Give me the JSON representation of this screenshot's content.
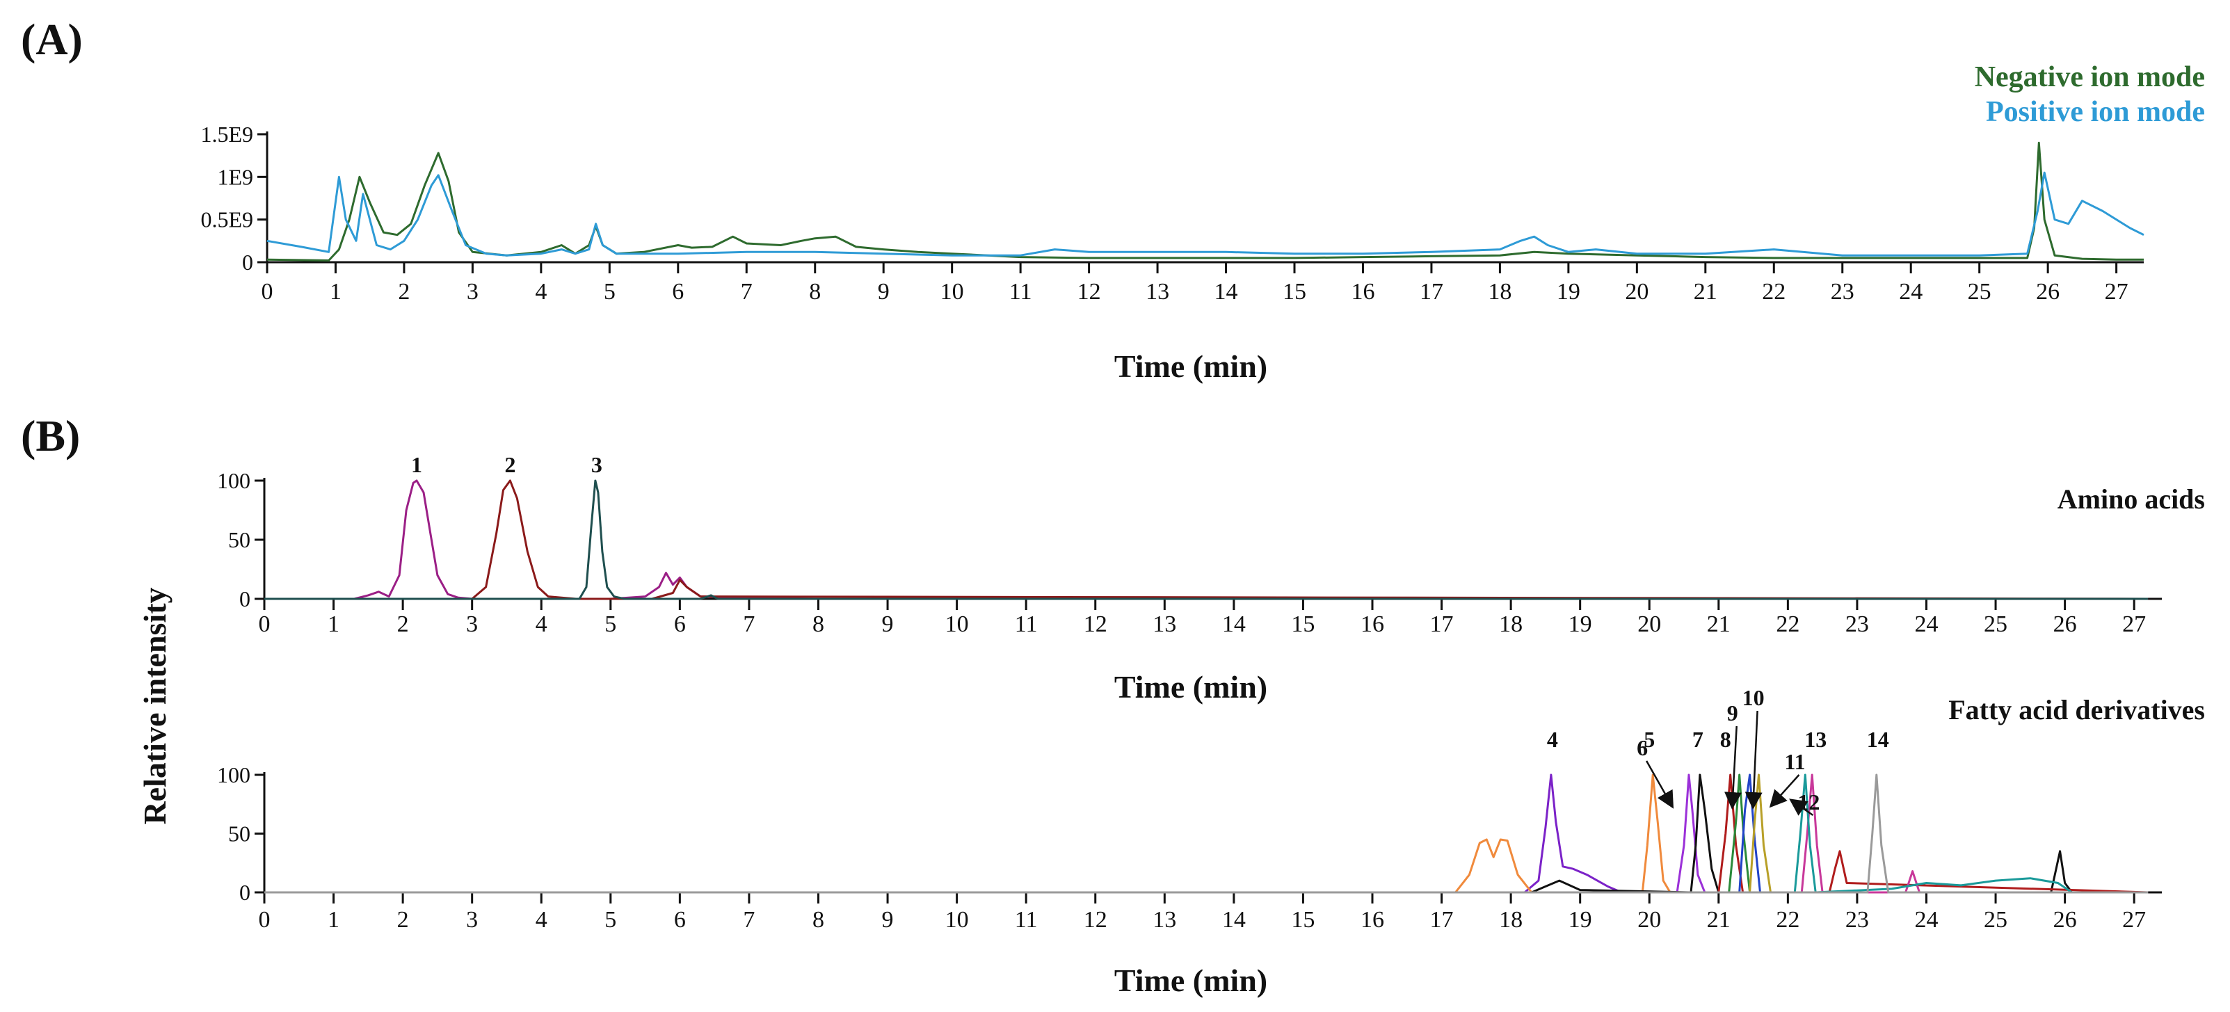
{
  "chart_data": [
    {
      "panel": "(A)",
      "type": "line",
      "xlabel": "Time (min)",
      "ylabel": "",
      "xlim": [
        0,
        27.4
      ],
      "ylim": [
        0,
        1.5
      ],
      "x_ticks": [
        "0",
        "1",
        "2",
        "3",
        "4",
        "5",
        "6",
        "7",
        "8",
        "9",
        "10",
        "11",
        "12",
        "13",
        "14",
        "15",
        "16",
        "17",
        "18",
        "19",
        "20",
        "21",
        "22",
        "23",
        "24",
        "25",
        "26",
        "27"
      ],
      "y_ticks": [
        {
          "value": 0,
          "label": "0"
        },
        {
          "value": 0.5,
          "label": "0.5E9"
        },
        {
          "value": 1,
          "label": "1E9"
        },
        {
          "value": 1.5,
          "label": "1.5E9"
        }
      ],
      "legend": [
        "Negative ion mode",
        "Positive ion mode"
      ],
      "legend_position": "top-right",
      "series": [
        {
          "name": "Negative ion mode",
          "color": "#2e6b2e",
          "x": [
            0,
            0.9,
            1.05,
            1.2,
            1.35,
            1.5,
            1.7,
            1.9,
            2.1,
            2.3,
            2.5,
            2.65,
            2.8,
            3.0,
            3.5,
            4.0,
            4.3,
            4.5,
            4.7,
            4.8,
            4.9,
            5.1,
            5.5,
            6.0,
            6.2,
            6.5,
            6.8,
            7.0,
            7.5,
            7.8,
            8.0,
            8.3,
            8.6,
            9.0,
            9.5,
            10,
            11,
            12,
            13,
            14,
            15,
            16,
            17,
            18,
            18.5,
            19,
            20,
            21,
            22,
            23,
            24,
            25,
            25.7,
            25.8,
            25.87,
            25.95,
            26.1,
            26.5,
            27,
            27.4
          ],
          "y": [
            0.03,
            0.02,
            0.15,
            0.5,
            1.0,
            0.7,
            0.35,
            0.32,
            0.45,
            0.9,
            1.28,
            0.95,
            0.35,
            0.12,
            0.08,
            0.12,
            0.2,
            0.1,
            0.2,
            0.42,
            0.2,
            0.1,
            0.12,
            0.2,
            0.17,
            0.18,
            0.3,
            0.22,
            0.2,
            0.25,
            0.28,
            0.3,
            0.18,
            0.15,
            0.12,
            0.1,
            0.06,
            0.05,
            0.05,
            0.05,
            0.05,
            0.06,
            0.07,
            0.08,
            0.12,
            0.1,
            0.08,
            0.06,
            0.05,
            0.05,
            0.05,
            0.05,
            0.05,
            0.4,
            1.4,
            0.5,
            0.08,
            0.04,
            0.03,
            0.03
          ]
        },
        {
          "name": "Positive ion mode",
          "color": "#2e9bd6",
          "x": [
            0,
            0.5,
            0.9,
            1.05,
            1.15,
            1.3,
            1.4,
            1.6,
            1.8,
            2.0,
            2.2,
            2.4,
            2.5,
            2.7,
            2.9,
            3.2,
            3.5,
            4.0,
            4.3,
            4.5,
            4.7,
            4.8,
            4.9,
            5.1,
            6,
            7,
            8,
            9,
            10,
            11,
            11.5,
            12,
            13,
            14,
            15,
            16,
            17,
            18,
            18.3,
            18.5,
            18.7,
            19,
            19.4,
            20,
            21,
            22,
            23,
            24,
            25,
            25.7,
            25.85,
            25.95,
            26.1,
            26.3,
            26.5,
            26.8,
            27.2,
            27.4
          ],
          "y": [
            0.25,
            0.18,
            0.12,
            1.0,
            0.5,
            0.25,
            0.8,
            0.2,
            0.15,
            0.25,
            0.5,
            0.9,
            1.02,
            0.6,
            0.2,
            0.1,
            0.08,
            0.1,
            0.15,
            0.1,
            0.15,
            0.45,
            0.2,
            0.1,
            0.1,
            0.12,
            0.12,
            0.1,
            0.08,
            0.08,
            0.15,
            0.12,
            0.12,
            0.12,
            0.1,
            0.1,
            0.12,
            0.15,
            0.25,
            0.3,
            0.2,
            0.12,
            0.15,
            0.1,
            0.1,
            0.15,
            0.08,
            0.08,
            0.08,
            0.1,
            0.6,
            1.05,
            0.5,
            0.45,
            0.72,
            0.6,
            0.4,
            0.32
          ]
        }
      ]
    },
    {
      "panel": "(B)",
      "type": "line",
      "title": "Amino acids",
      "xlabel": "Time (min)",
      "ylabel": "Relative intensity",
      "xlim": [
        0,
        27.4
      ],
      "ylim": [
        0,
        100
      ],
      "x_ticks": [
        "0",
        "1",
        "2",
        "3",
        "4",
        "5",
        "6",
        "7",
        "8",
        "9",
        "10",
        "11",
        "12",
        "13",
        "14",
        "15",
        "16",
        "17",
        "18",
        "19",
        "20",
        "21",
        "22",
        "23",
        "24",
        "25",
        "26",
        "27"
      ],
      "y_ticks": [
        {
          "value": 0,
          "label": "0"
        },
        {
          "value": 50,
          "label": "50"
        },
        {
          "value": 100,
          "label": "100"
        }
      ],
      "peak_labels": [
        {
          "label": "1",
          "x": 2.2,
          "y": 100
        },
        {
          "label": "2",
          "x": 3.55,
          "y": 100
        },
        {
          "label": "3",
          "x": 4.8,
          "y": 100
        }
      ],
      "series": [
        {
          "name": "Peak 1",
          "color": "#9b1f86",
          "x": [
            0,
            1.3,
            1.5,
            1.65,
            1.8,
            1.95,
            2.05,
            2.15,
            2.2,
            2.3,
            2.4,
            2.5,
            2.65,
            2.8,
            3.0,
            5.0,
            5.5,
            5.7,
            5.8,
            5.9,
            6.0,
            6.1,
            6.3,
            8,
            27.2
          ],
          "y": [
            0,
            0,
            3,
            6,
            2,
            20,
            75,
            98,
            100,
            90,
            55,
            20,
            4,
            1,
            0,
            0,
            2,
            10,
            22,
            12,
            18,
            10,
            2,
            0,
            0
          ]
        },
        {
          "name": "Peak 2",
          "color": "#8b1a1a",
          "x": [
            0,
            3.0,
            3.2,
            3.35,
            3.45,
            3.55,
            3.65,
            3.8,
            3.95,
            4.1,
            4.5,
            5.6,
            5.9,
            6.0,
            6.1,
            6.3,
            27.2
          ],
          "y": [
            0,
            0,
            10,
            55,
            92,
            100,
            85,
            40,
            10,
            2,
            0,
            0,
            5,
            16,
            10,
            2,
            0
          ]
        },
        {
          "name": "Peak 3",
          "color": "#1f4f4f",
          "x": [
            0,
            4.55,
            4.65,
            4.72,
            4.78,
            4.82,
            4.88,
            4.95,
            5.05,
            5.2,
            6.3,
            6.45,
            6.55,
            27.2
          ],
          "y": [
            0,
            0,
            10,
            60,
            100,
            90,
            40,
            10,
            2,
            0,
            0,
            3,
            0,
            0
          ]
        }
      ]
    },
    {
      "panel": "(B)",
      "type": "line",
      "title": "Fatty acid derivatives",
      "xlabel": "Time (min)",
      "ylabel": "Relative intensity",
      "xlim": [
        0,
        27.4
      ],
      "ylim": [
        0,
        100
      ],
      "x_ticks": [
        "0",
        "1",
        "2",
        "3",
        "4",
        "5",
        "6",
        "7",
        "8",
        "9",
        "10",
        "11",
        "12",
        "13",
        "14",
        "15",
        "16",
        "17",
        "18",
        "19",
        "20",
        "21",
        "22",
        "23",
        "24",
        "25",
        "26",
        "27"
      ],
      "y_ticks": [
        {
          "value": 0,
          "label": "0"
        },
        {
          "value": 50,
          "label": "50"
        },
        {
          "value": 100,
          "label": "100"
        }
      ],
      "peak_labels": [
        {
          "label": "4",
          "x": 18.6,
          "y": 100
        },
        {
          "label": "5",
          "x": 20.0,
          "y": 100
        },
        {
          "label": "6",
          "x": 20.3,
          "y": 100
        },
        {
          "label": "7",
          "x": 20.7,
          "y": 100
        },
        {
          "label": "8",
          "x": 21.1,
          "y": 100
        },
        {
          "label": "9",
          "x": 21.2,
          "y": 100
        },
        {
          "label": "10",
          "x": 21.5,
          "y": 100
        },
        {
          "label": "11",
          "x": 21.8,
          "y": 100
        },
        {
          "label": "12",
          "x": 22.1,
          "y": 100
        },
        {
          "label": "13",
          "x": 22.4,
          "y": 100
        },
        {
          "label": "14",
          "x": 23.3,
          "y": 100
        }
      ],
      "series": [
        {
          "name": "Peak 4",
          "color": "#7b22c8",
          "x": [
            0,
            18.2,
            18.4,
            18.5,
            18.58,
            18.65,
            18.75,
            18.9,
            19.1,
            19.4,
            19.6,
            27.2
          ],
          "y": [
            0,
            0,
            10,
            55,
            100,
            60,
            22,
            20,
            15,
            5,
            0,
            0
          ]
        },
        {
          "name": "Peak 5",
          "color": "#f08a3c",
          "x": [
            0,
            17.2,
            17.4,
            17.55,
            17.65,
            17.75,
            17.85,
            17.95,
            18.1,
            18.3,
            19.9,
            19.97,
            20.05,
            20.12,
            20.2,
            20.3,
            27.2
          ],
          "y": [
            0,
            0,
            15,
            42,
            45,
            30,
            45,
            44,
            15,
            0,
            0,
            40,
            100,
            60,
            10,
            0,
            0
          ]
        },
        {
          "name": "Peak 6",
          "color": "#9b30d8",
          "x": [
            0,
            20.4,
            20.5,
            20.57,
            20.62,
            20.7,
            20.8,
            27.2
          ],
          "y": [
            0,
            0,
            40,
            100,
            70,
            15,
            0,
            0
          ]
        },
        {
          "name": "Peak 7",
          "color": "#111111",
          "x": [
            0,
            18.3,
            18.5,
            18.7,
            19.0,
            20.6,
            20.67,
            20.73,
            20.8,
            20.9,
            21.0,
            25.8,
            25.93,
            26.0,
            26.1,
            27.2
          ],
          "y": [
            0,
            0,
            5,
            10,
            2,
            0,
            40,
            100,
            70,
            20,
            0,
            0,
            35,
            8,
            0,
            0
          ]
        },
        {
          "name": "Peak 8",
          "color": "#b01c1c",
          "x": [
            0,
            21.0,
            21.1,
            21.17,
            21.25,
            21.35,
            22.6,
            22.68,
            22.75,
            22.85,
            27.2
          ],
          "y": [
            0,
            0,
            50,
            100,
            40,
            0,
            0,
            20,
            35,
            8,
            0
          ]
        },
        {
          "name": "Peak 9",
          "color": "#2a8a3a",
          "x": [
            0,
            21.15,
            21.25,
            21.3,
            21.36,
            21.45,
            27.2
          ],
          "y": [
            0,
            0,
            60,
            100,
            50,
            0,
            0
          ]
        },
        {
          "name": "Peak 10",
          "color": "#2144c8",
          "x": [
            0,
            21.3,
            21.38,
            21.45,
            21.52,
            21.6,
            27.2
          ],
          "y": [
            0,
            0,
            70,
            100,
            45,
            0,
            0
          ]
        },
        {
          "name": "Peak 11",
          "color": "#b8a028",
          "x": [
            0,
            21.45,
            21.52,
            21.58,
            21.65,
            21.75,
            27.2
          ],
          "y": [
            0,
            0,
            60,
            100,
            40,
            0,
            0
          ]
        },
        {
          "name": "Peak 12",
          "color": "#c8389a",
          "x": [
            0,
            22.2,
            22.28,
            22.35,
            22.42,
            22.5,
            23.7,
            23.8,
            23.9,
            27.2
          ],
          "y": [
            0,
            0,
            50,
            100,
            40,
            0,
            0,
            18,
            0,
            0
          ]
        },
        {
          "name": "Peak 13",
          "color": "#1a9a9a",
          "x": [
            0,
            22.1,
            22.18,
            22.25,
            22.32,
            22.4,
            23.5,
            24.0,
            24.5,
            25.0,
            25.5,
            25.9,
            26.1,
            27.2
          ],
          "y": [
            0,
            0,
            50,
            100,
            40,
            0,
            3,
            8,
            6,
            10,
            12,
            8,
            0,
            0
          ]
        },
        {
          "name": "Peak 14",
          "color": "#9a9a9a",
          "x": [
            0,
            23.15,
            23.22,
            23.28,
            23.35,
            23.45,
            27.2
          ],
          "y": [
            0,
            0,
            50,
            100,
            40,
            0,
            0
          ]
        }
      ]
    }
  ]
}
